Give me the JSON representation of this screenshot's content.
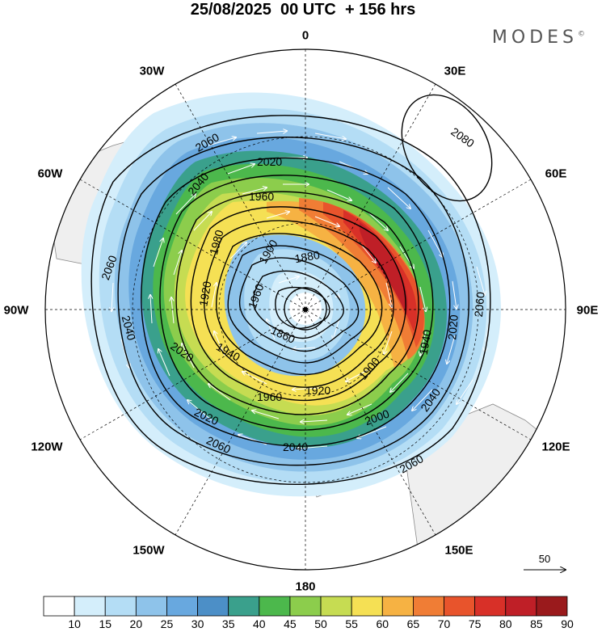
{
  "title": "25/08/2025  00 UTC  + 156 hrs",
  "brand": "MODES",
  "brand_mark": "©",
  "longitude_labels": [
    "0",
    "30E",
    "60E",
    "90E",
    "120E",
    "150E",
    "180",
    "150W",
    "120W",
    "90W",
    "60W",
    "30W"
  ],
  "contour_labels": [
    "2080",
    "2060",
    "2060",
    "2060",
    "2060",
    "2060",
    "2040",
    "2040",
    "2040",
    "2040",
    "2020",
    "2020",
    "2020",
    "2020",
    "2000",
    "1980",
    "1960",
    "1960",
    "1960",
    "1940",
    "1940",
    "1920",
    "1920",
    "1900",
    "1900",
    "1880",
    "1860"
  ],
  "colorbar": {
    "ticks": [
      "10",
      "15",
      "20",
      "25",
      "30",
      "35",
      "40",
      "45",
      "50",
      "55",
      "60",
      "65",
      "70",
      "75",
      "80",
      "85",
      "90"
    ],
    "colors": [
      "#ffffff",
      "#d4eefb",
      "#b4ddf5",
      "#8ec3ea",
      "#68a8df",
      "#4c8fc7",
      "#3aa08c",
      "#4cb84c",
      "#8ccd4c",
      "#c6dc52",
      "#f5e054",
      "#f6b243",
      "#f07d35",
      "#e8542c",
      "#d83028",
      "#bf1f27",
      "#9a1a1c"
    ]
  },
  "wind_reference": {
    "value": "50"
  },
  "chart_data": {
    "type": "polar-stereographic map",
    "hemisphere": "south",
    "variable_fill": "wind speed (colour scale 10–90)",
    "contour_field": "geopotential height",
    "contour_levels": [
      1860,
      1880,
      1900,
      1920,
      1940,
      1960,
      1980,
      2000,
      2020,
      2040,
      2060,
      2080
    ],
    "low_center": "near pole",
    "high_center": "between 30E and 60E, 2080"
  }
}
